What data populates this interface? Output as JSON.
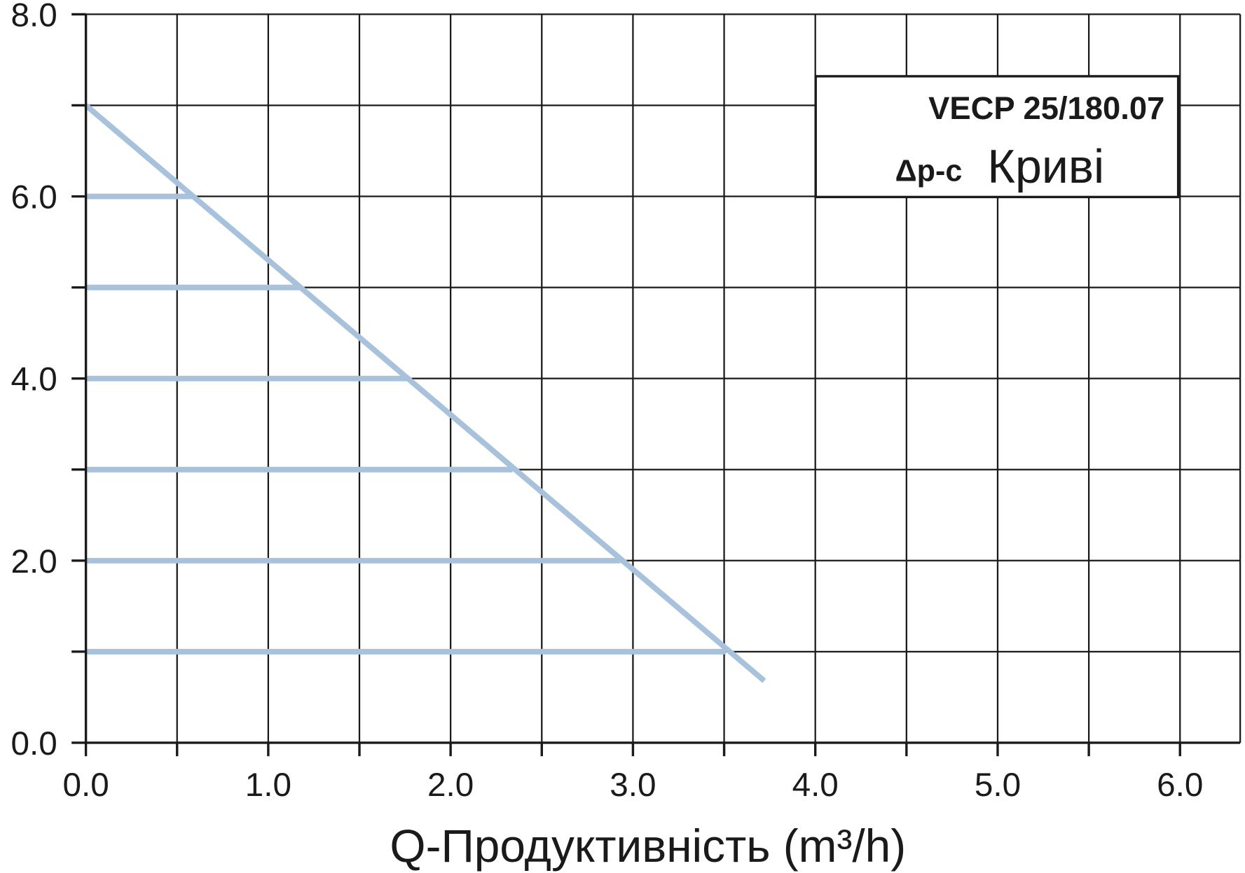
{
  "chart_data": {
    "type": "line",
    "xlabel": "Q-Продуктивність (m³/h)",
    "annotations": [
      "VECP 25/180.07",
      "Δp-c",
      "Криві"
    ],
    "xlim": [
      0,
      6.33
    ],
    "ylim": [
      0,
      8
    ],
    "xticks": [
      {
        "value": 0,
        "label": "0.0"
      },
      {
        "value": 1,
        "label": "1.0"
      },
      {
        "value": 2,
        "label": "2.0"
      },
      {
        "value": 3,
        "label": "3.0"
      },
      {
        "value": 4,
        "label": "4.0"
      },
      {
        "value": 5,
        "label": "5.0"
      },
      {
        "value": 6,
        "label": "6.0"
      }
    ],
    "yticks": [
      {
        "value": 0,
        "label": "0.0"
      },
      {
        "value": 2,
        "label": "2.0"
      },
      {
        "value": 4,
        "label": "4.0"
      },
      {
        "value": 6,
        "label": "6.0"
      },
      {
        "value": 8,
        "label": "8.0"
      }
    ],
    "xminor_ticks": [
      0.5,
      1.5,
      2.5,
      3.5,
      4.5,
      5.5
    ],
    "yminor_ticks": [
      1,
      3,
      5,
      7
    ],
    "grid": true,
    "series": [
      {
        "color": "#a8c2dc",
        "x": [
          0,
          3.72
        ],
        "values": [
          7.0,
          0.68
        ]
      },
      {
        "color": "#a8c2dc",
        "x": [
          0,
          0.58
        ],
        "values": [
          6,
          6
        ]
      },
      {
        "color": "#a8c2dc",
        "x": [
          0,
          1.17
        ],
        "values": [
          5,
          5
        ]
      },
      {
        "color": "#a8c2dc",
        "x": [
          0,
          1.76
        ],
        "values": [
          4,
          4
        ]
      },
      {
        "color": "#a8c2dc",
        "x": [
          0,
          2.34
        ],
        "values": [
          3,
          3
        ]
      },
      {
        "color": "#a8c2dc",
        "x": [
          0,
          2.93
        ],
        "values": [
          2,
          2
        ]
      },
      {
        "color": "#a8c2dc",
        "x": [
          0,
          3.51
        ],
        "values": [
          1,
          1
        ]
      }
    ]
  }
}
